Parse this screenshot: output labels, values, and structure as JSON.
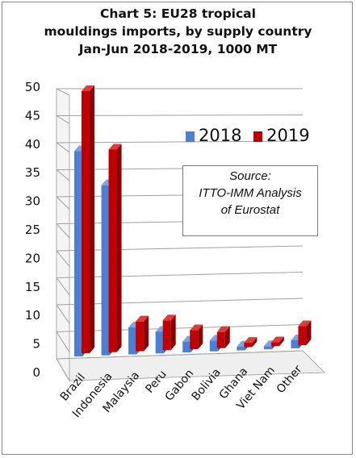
{
  "chart_data": {
    "type": "bar",
    "title": [
      "Chart 5: EU28 tropical",
      "mouldings imports, by supply country",
      "Jan-Jun 2018-2019, 1000 MT"
    ],
    "categories": [
      "Brazil",
      "Indonesia",
      "Malaysia",
      "Peru",
      "Gabon",
      "Bolivia",
      "Ghana",
      "Viet Nam",
      "Other"
    ],
    "series": [
      {
        "name": "2018",
        "values": [
          38.0,
          31.5,
          5.0,
          4.0,
          2.0,
          2.0,
          0.7,
          0.6,
          1.5
        ]
      },
      {
        "name": "2019",
        "values": [
          48.5,
          37.5,
          5.5,
          5.5,
          3.5,
          3.0,
          0.8,
          0.7,
          3.5
        ]
      }
    ],
    "yticks": [
      "0",
      "5",
      "10",
      "15",
      "20",
      "25",
      "30",
      "35",
      "40",
      "45",
      "50"
    ],
    "ylim": [
      0,
      50
    ],
    "grid": true,
    "legend_position": "top-right",
    "colors": {
      "2018": "#4a7fd4",
      "2019": "#c00000"
    },
    "annotation": [
      "Source:",
      "ITTO-IMM Analysis",
      "of Eurostat"
    ]
  }
}
